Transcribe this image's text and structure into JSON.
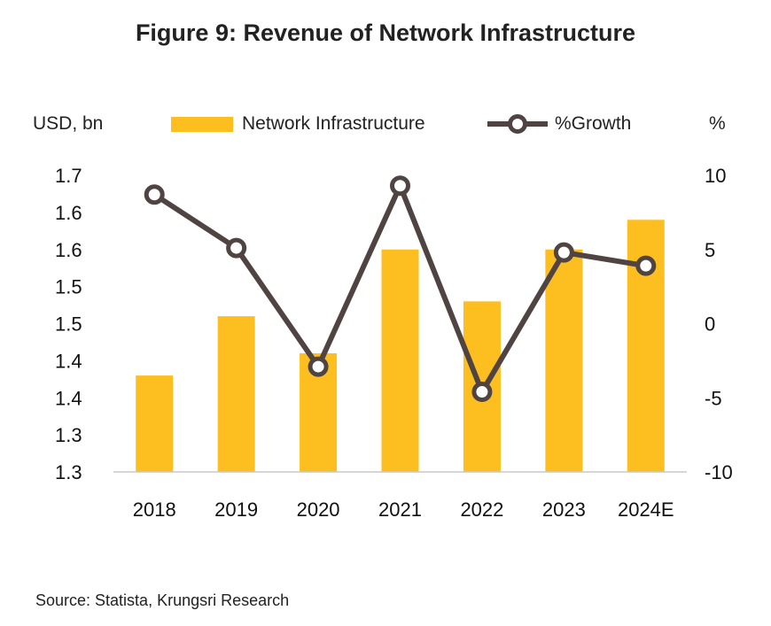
{
  "title": "Figure 9: Revenue of Network Infrastructure",
  "source": "Source: Statista, Krungsri Research",
  "chart_data": {
    "type": "bar",
    "categories": [
      "2018",
      "2019",
      "2020",
      "2021",
      "2022",
      "2023",
      "2024E"
    ],
    "series": [
      {
        "name": "Network Infrastructure",
        "type": "bar",
        "axis": "left",
        "values": [
          1.38,
          1.46,
          1.41,
          1.55,
          1.48,
          1.55,
          1.59
        ]
      },
      {
        "name": "%Growth",
        "type": "line",
        "axis": "right",
        "values": [
          8.7,
          5.1,
          -2.9,
          9.3,
          -4.6,
          4.8,
          3.9
        ]
      }
    ],
    "left_axis": {
      "label": "USD, bn",
      "ylim": [
        1.25,
        1.65
      ],
      "tick_labels": [
        "1.3",
        "1.3",
        "1.4",
        "1.4",
        "1.5",
        "1.5",
        "1.6",
        "1.6",
        "1.7"
      ]
    },
    "right_axis": {
      "label": "%",
      "ylim": [
        -10,
        10
      ],
      "tick_labels": [
        "-10",
        "-5",
        "0",
        "5",
        "10"
      ]
    },
    "legend": {
      "position": "top"
    },
    "grid": false,
    "colors": {
      "bar": "#FDBF1F",
      "line": "#4F4442",
      "marker_fill": "#FFFFFF"
    }
  }
}
